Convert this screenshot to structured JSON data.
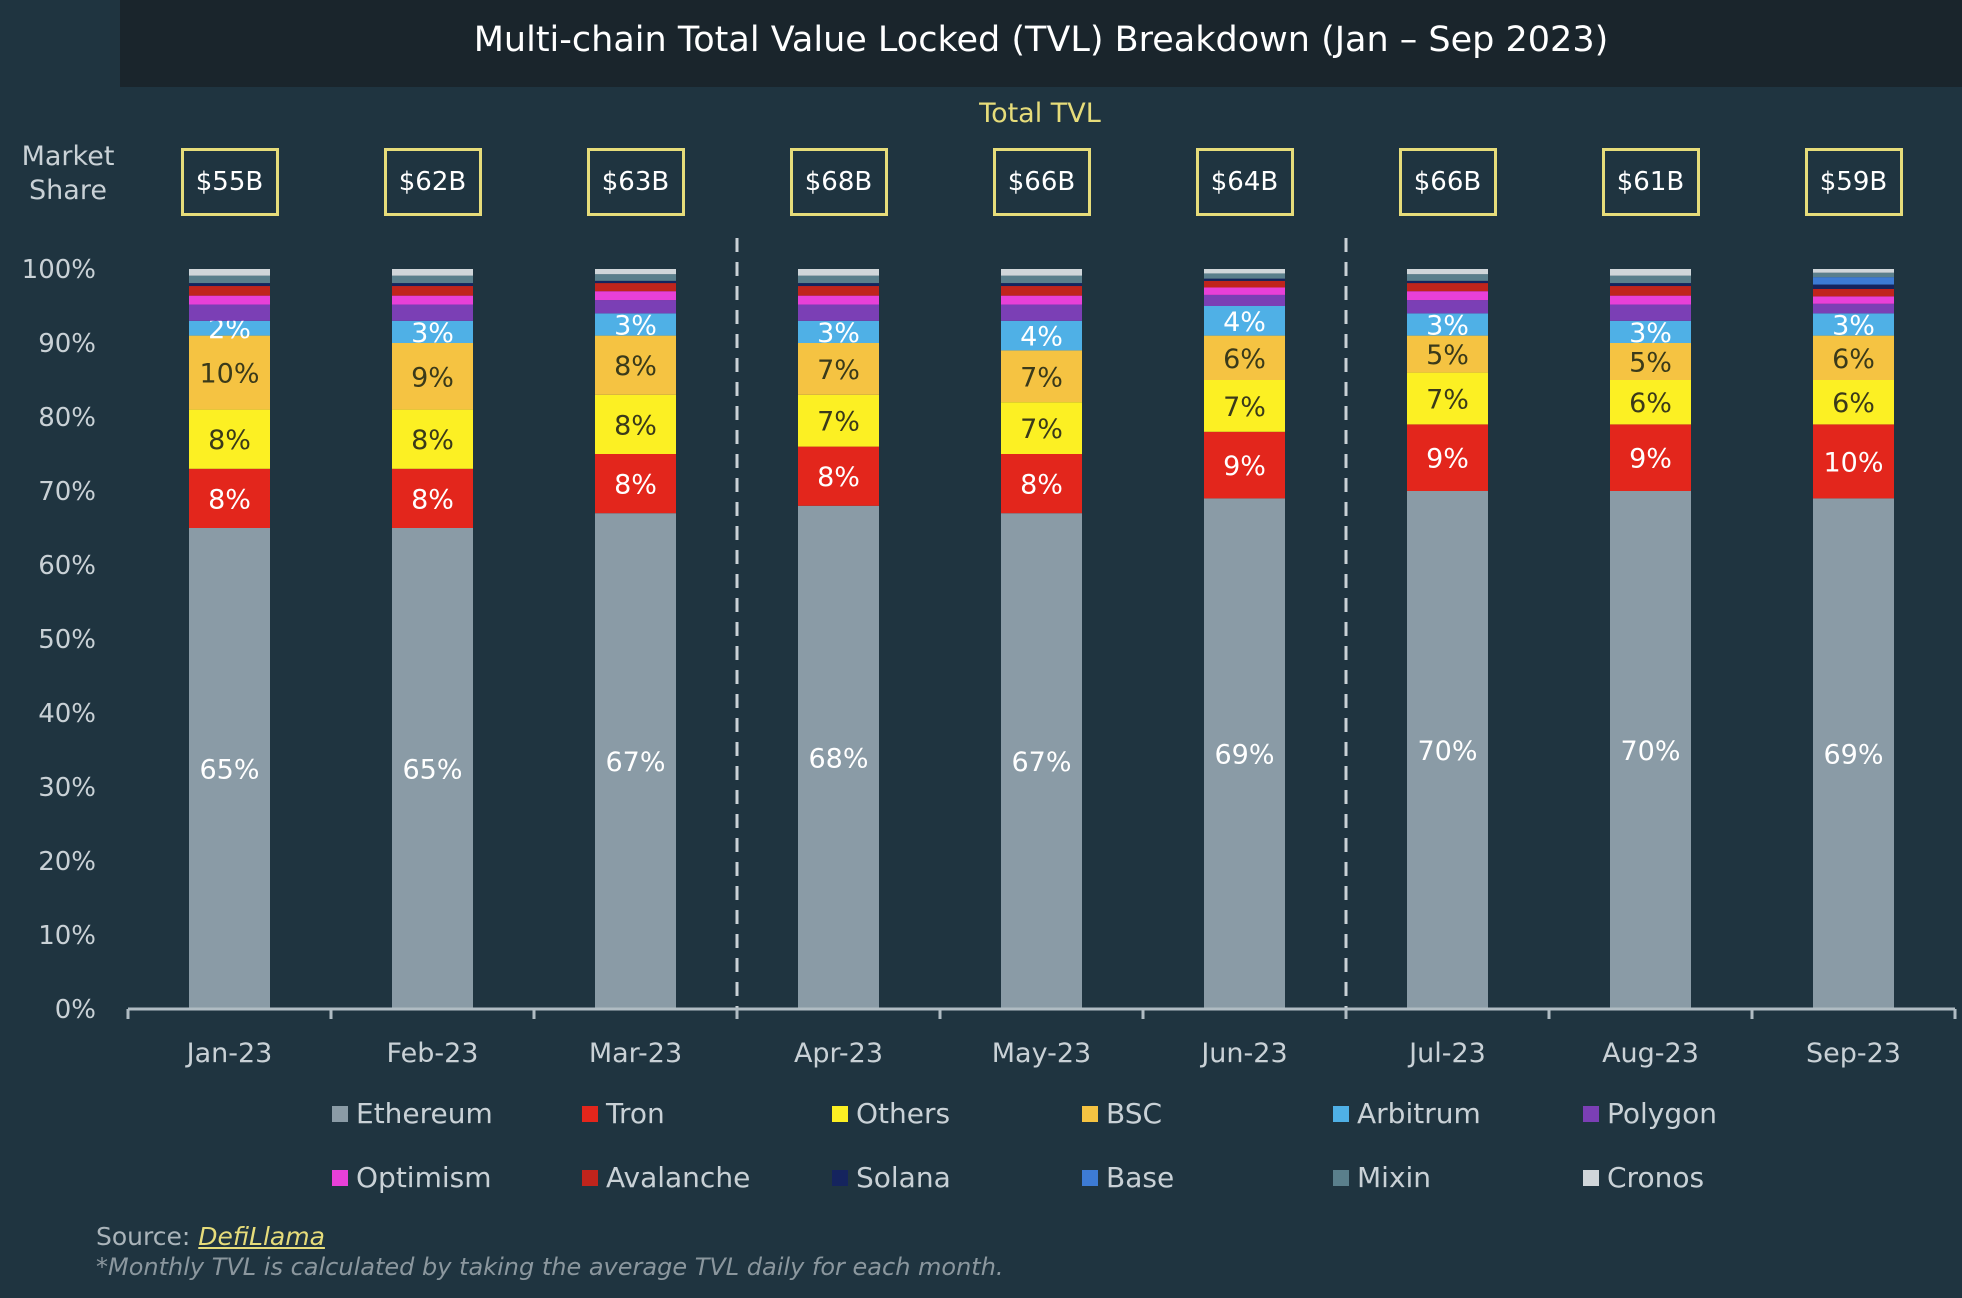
{
  "chart_data": {
    "type": "bar",
    "stacked": true,
    "title": "Multi-chain Total Value Locked (TVL) Breakdown (Jan – Sep 2023)",
    "ylabel": "Market Share",
    "ylim": [
      0,
      100
    ],
    "yticks": [
      "0%",
      "10%",
      "20%",
      "30%",
      "40%",
      "50%",
      "60%",
      "70%",
      "80%",
      "90%",
      "100%"
    ],
    "categories": [
      "Jan-23",
      "Feb-23",
      "Mar-23",
      "Apr-23",
      "May-23",
      "Jun-23",
      "Jul-23",
      "Aug-23",
      "Sep-23"
    ],
    "total_tvl_label": "Total TVL",
    "total_tvl": [
      "$55B",
      "$62B",
      "$63B",
      "$68B",
      "$66B",
      "$64B",
      "$66B",
      "$61B",
      "$59B"
    ],
    "series": [
      {
        "name": "Ethereum",
        "color": "#8a9ba6",
        "labeled": true,
        "label_color": "#ffffff",
        "values": [
          65,
          65,
          67,
          68,
          67,
          69,
          70,
          70,
          69
        ]
      },
      {
        "name": "Tron",
        "color": "#e3261c",
        "labeled": true,
        "label_color": "#ffffff",
        "values": [
          8,
          8,
          8,
          8,
          8,
          9,
          9,
          9,
          10
        ]
      },
      {
        "name": "Others",
        "color": "#fcf023",
        "labeled": true,
        "label_color": "#3a3a1a",
        "values": [
          8,
          8,
          8,
          7,
          7,
          7,
          7,
          6,
          6
        ]
      },
      {
        "name": "BSC",
        "color": "#f5c342",
        "labeled": true,
        "label_color": "#3a3a1a",
        "values": [
          10,
          9,
          8,
          7,
          7,
          6,
          5,
          5,
          6
        ]
      },
      {
        "name": "Arbitrum",
        "color": "#4fb0e6",
        "labeled": true,
        "label_color": "#ffffff",
        "values": [
          2,
          3,
          3,
          3,
          4,
          4,
          3,
          3,
          3
        ]
      },
      {
        "name": "Polygon",
        "color": "#7b3fb5",
        "labeled": false,
        "values": [
          2.2,
          2.2,
          1.8,
          2.2,
          2.2,
          1.5,
          1.8,
          2.2,
          1.3
        ]
      },
      {
        "name": "Optimism",
        "color": "#e840d8",
        "labeled": false,
        "values": [
          1.2,
          1.2,
          1.2,
          1.2,
          1.2,
          1.0,
          1.2,
          1.2,
          1.0
        ]
      },
      {
        "name": "Avalanche",
        "color": "#c0241c",
        "labeled": false,
        "values": [
          1.3,
          1.3,
          1.1,
          1.3,
          1.3,
          0.9,
          1.1,
          1.3,
          1.0
        ]
      },
      {
        "name": "Solana",
        "color": "#15245e",
        "labeled": false,
        "values": [
          0.4,
          0.4,
          0.3,
          0.4,
          0.4,
          0.3,
          0.3,
          0.4,
          0.6
        ]
      },
      {
        "name": "Base",
        "color": "#3d7bd4",
        "labeled": false,
        "values": [
          0,
          0,
          0,
          0,
          0,
          0,
          0,
          0,
          1.0
        ]
      },
      {
        "name": "Mixin",
        "color": "#5a7f8c",
        "labeled": false,
        "values": [
          1.0,
          1.0,
          0.9,
          1.0,
          1.0,
          0.7,
          0.9,
          1.0,
          0.6
        ]
      },
      {
        "name": "Cronos",
        "color": "#d0d6da",
        "labeled": false,
        "values": [
          0.9,
          0.9,
          0.7,
          0.9,
          0.9,
          0.6,
          0.7,
          0.9,
          0.5
        ]
      }
    ],
    "grid": false,
    "legend_position": "bottom"
  },
  "footer": {
    "source_label": "Source:",
    "source_link": "DefiLlama",
    "note": "*Monthly TVL is calculated by taking the average TVL daily for each month."
  }
}
